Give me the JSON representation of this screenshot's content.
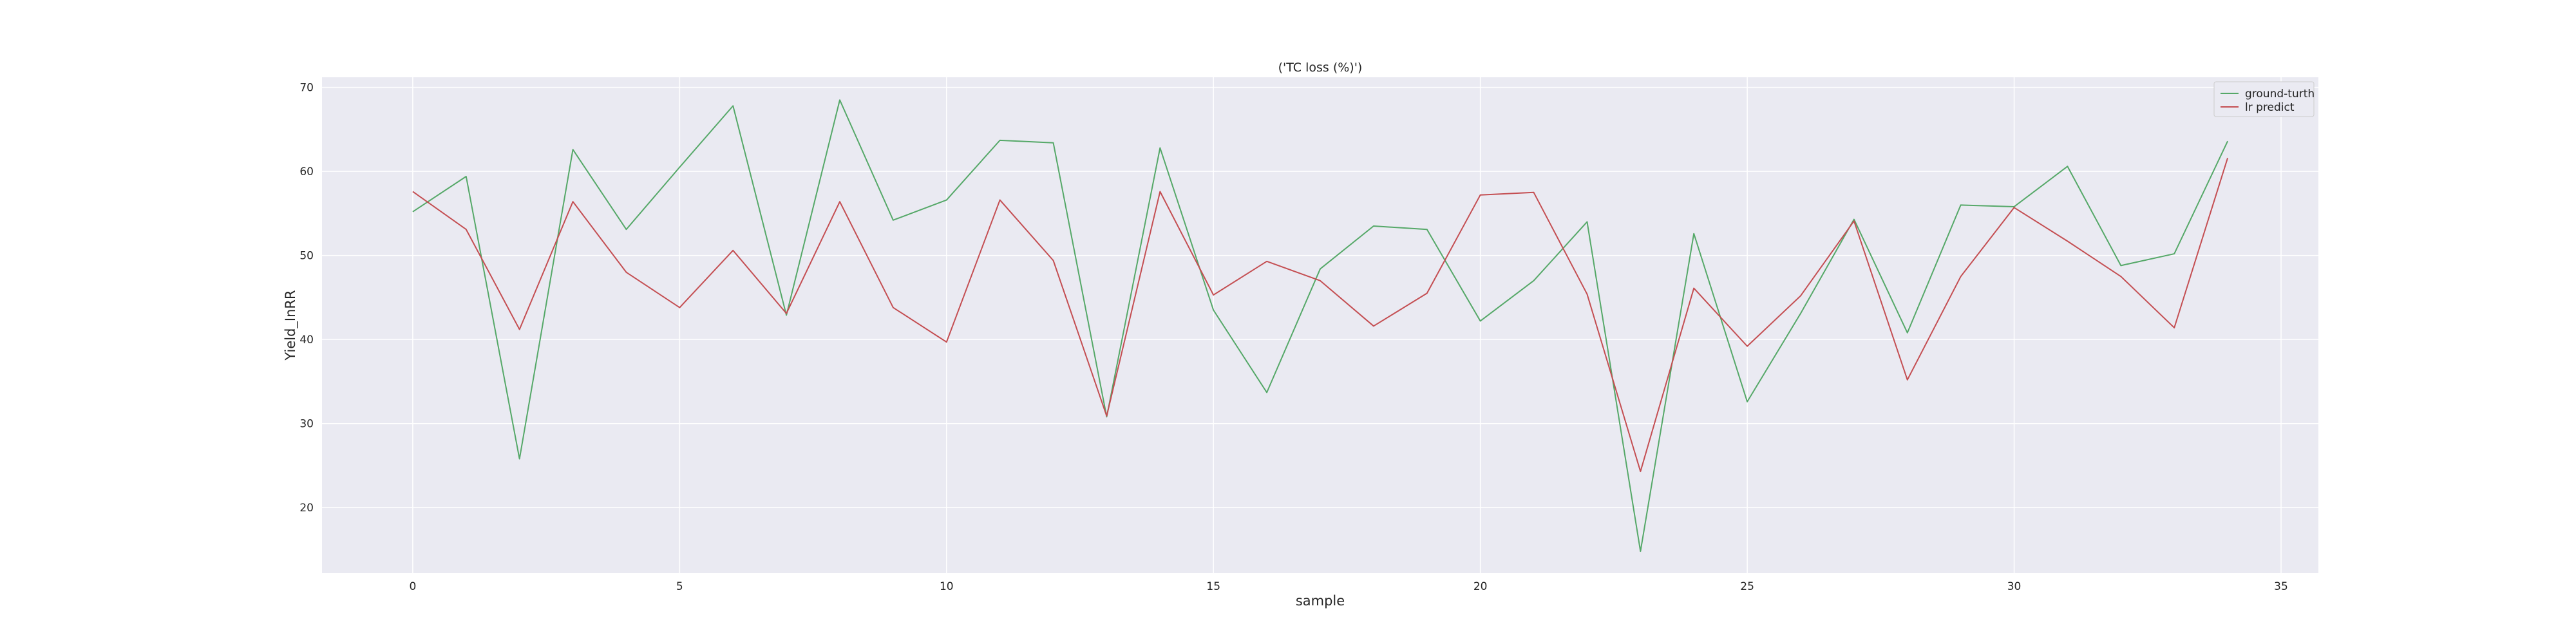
{
  "chart_data": {
    "type": "line",
    "title": "('TC loss (%)')",
    "xlabel": "sample",
    "ylabel": "Yield_InRR",
    "xlim": [
      -1.7,
      35.7
    ],
    "ylim": [
      12.2,
      71.2
    ],
    "x_ticks": [
      0,
      5,
      10,
      15,
      20,
      25,
      30,
      35
    ],
    "y_ticks": [
      20,
      30,
      40,
      50,
      60,
      70
    ],
    "grid": true,
    "legend_position": "top-right",
    "x": [
      0,
      1,
      2,
      3,
      4,
      5,
      6,
      7,
      8,
      9,
      10,
      11,
      12,
      13,
      14,
      15,
      16,
      17,
      18,
      19,
      20,
      21,
      22,
      23,
      24,
      25,
      26,
      27,
      28,
      29,
      30,
      31,
      32,
      33,
      34
    ],
    "series": [
      {
        "name": "ground-turth",
        "color": "#55a868",
        "values": [
          55.2,
          59.4,
          25.8,
          62.6,
          53.1,
          60.5,
          67.8,
          42.9,
          68.5,
          54.2,
          56.6,
          63.7,
          63.4,
          30.8,
          62.8,
          43.5,
          33.7,
          48.4,
          53.5,
          53.1,
          42.2,
          47.0,
          54.0,
          14.8,
          52.6,
          32.6,
          43.1,
          54.3,
          40.8,
          56.0,
          55.8,
          60.6,
          48.8,
          50.2,
          63.6
        ]
      },
      {
        "name": "lr predict",
        "color": "#c44e52",
        "values": [
          57.6,
          53.1,
          41.2,
          56.4,
          48.0,
          43.8,
          50.6,
          43.1,
          56.4,
          43.8,
          39.7,
          56.6,
          49.4,
          30.9,
          57.6,
          45.3,
          49.3,
          47.0,
          41.6,
          45.5,
          57.2,
          57.5,
          45.4,
          24.3,
          46.1,
          39.2,
          45.2,
          54.1,
          35.2,
          47.5,
          55.7,
          51.7,
          47.5,
          41.4,
          61.6
        ]
      }
    ]
  }
}
